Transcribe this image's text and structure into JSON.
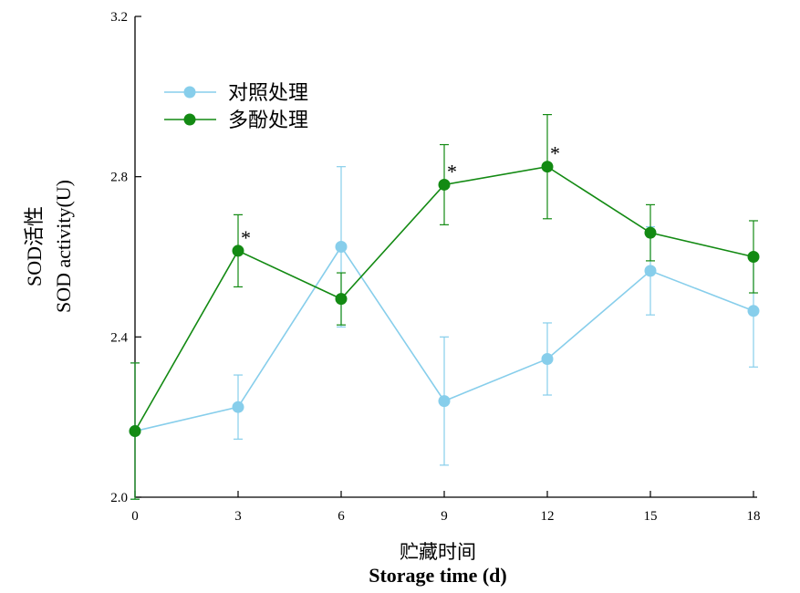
{
  "chart_data": {
    "type": "line",
    "xlabel_cn": "贮藏时间",
    "xlabel_en": "Storage time (d)",
    "ylabel_cn": "SOD活性",
    "ylabel_en": "SOD activity(U)",
    "x": [
      0,
      3,
      6,
      9,
      12,
      15,
      18
    ],
    "x_ticks": [
      "0",
      "3",
      "6",
      "9",
      "12",
      "15",
      "18"
    ],
    "y_ticks": [
      "2.0",
      "2.4",
      "2.8",
      "3.2"
    ],
    "y_tick_values": [
      2.0,
      2.4,
      2.8,
      3.2
    ],
    "xlim": [
      0,
      18
    ],
    "ylim": [
      2.0,
      3.2
    ],
    "grid": false,
    "legend_position": "top-left",
    "series": [
      {
        "name": "对照处理",
        "color": "#87ceeb",
        "values": [
          2.165,
          2.225,
          2.625,
          2.24,
          2.345,
          2.565,
          2.465
        ],
        "errors": [
          0.17,
          0.08,
          0.2,
          0.16,
          0.09,
          0.11,
          0.14
        ],
        "significant": [
          false,
          false,
          false,
          false,
          false,
          false,
          false
        ]
      },
      {
        "name": "多酚处理",
        "color": "#138a13",
        "values": [
          2.165,
          2.615,
          2.495,
          2.78,
          2.825,
          2.66,
          2.6
        ],
        "errors": [
          0.17,
          0.09,
          0.065,
          0.1,
          0.13,
          0.07,
          0.09
        ],
        "significant": [
          false,
          true,
          false,
          true,
          true,
          false,
          false
        ]
      }
    ],
    "significance_marker": "*"
  }
}
